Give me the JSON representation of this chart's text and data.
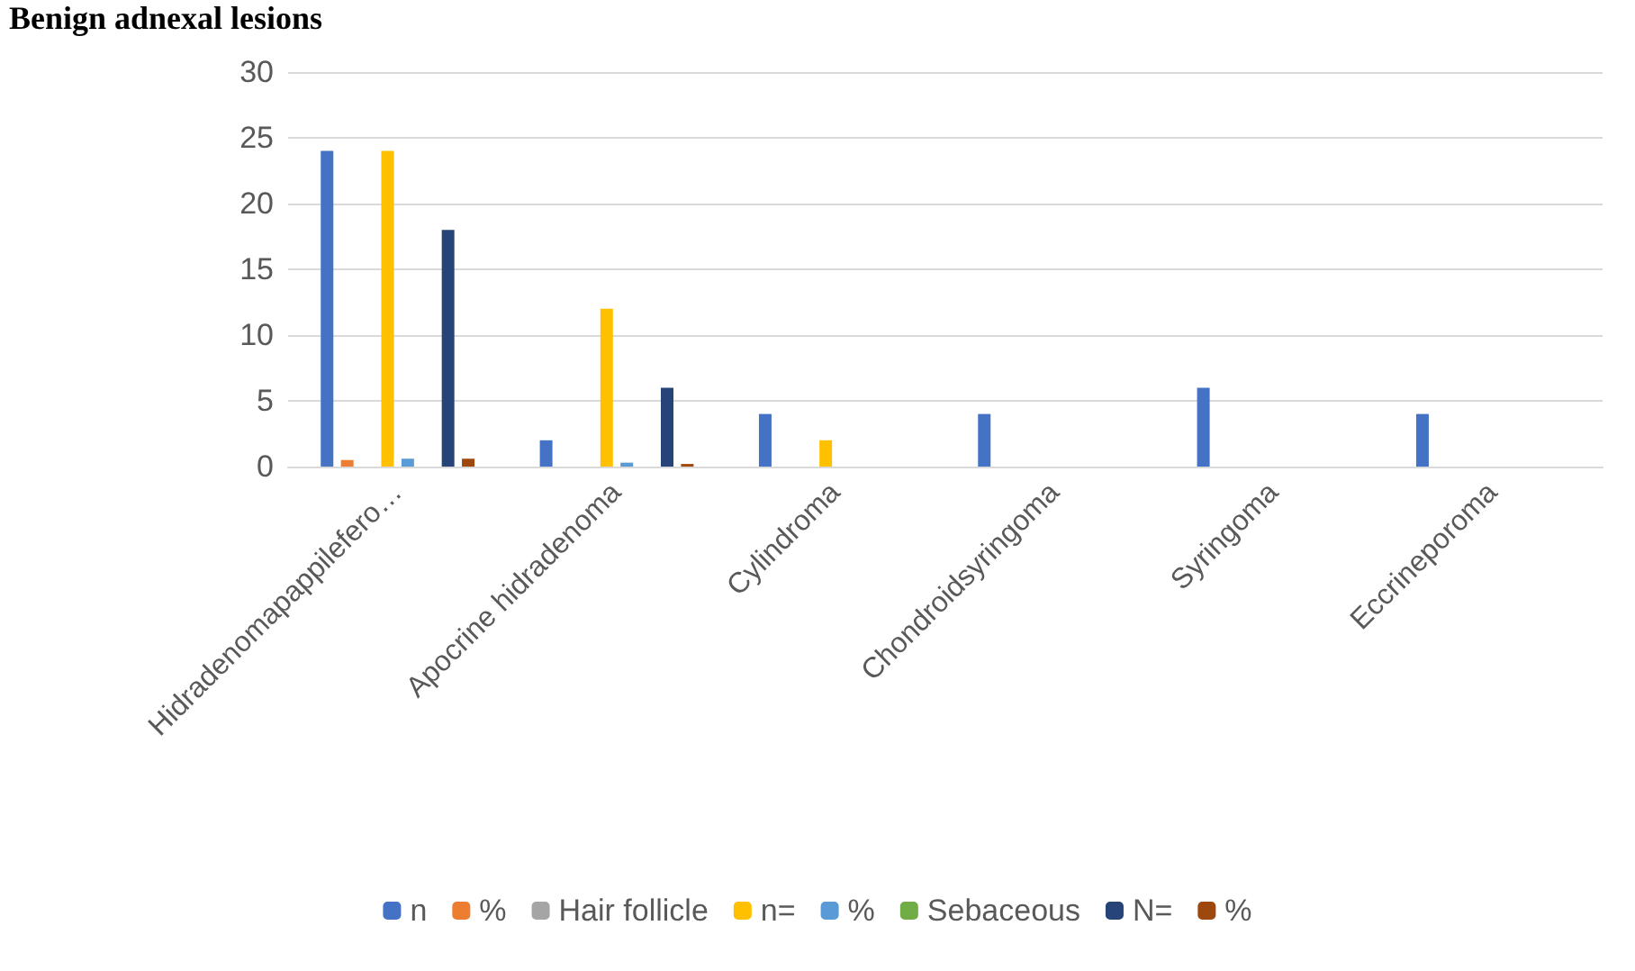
{
  "chart_data": {
    "type": "bar",
    "title": "Benign adnexal lesions",
    "categories": [
      "Hidradenomapappilefero…",
      "Apocrine hidradenoma",
      "Cylindroma",
      "Chondroidsyringoma",
      "Syringoma",
      "Eccrineporoma"
    ],
    "series": [
      {
        "name": "n",
        "color": "#4472c4",
        "values": [
          24,
          2,
          4,
          4,
          6,
          4
        ]
      },
      {
        "name": "%",
        "color": "#ed7d31",
        "values": [
          0.5,
          null,
          null,
          null,
          null,
          null
        ]
      },
      {
        "name": "Hair follicle",
        "color": "#a5a5a5",
        "values": [
          null,
          null,
          null,
          null,
          null,
          null
        ]
      },
      {
        "name": "n=",
        "color": "#ffc000",
        "values": [
          24,
          12,
          2,
          null,
          null,
          null
        ]
      },
      {
        "name": "%",
        "color": "#5b9bd5",
        "values": [
          0.6,
          0.3,
          null,
          null,
          null,
          null
        ]
      },
      {
        "name": "Sebaceous",
        "color": "#70ad47",
        "values": [
          null,
          null,
          null,
          null,
          null,
          null
        ]
      },
      {
        "name": "N=",
        "color": "#264478",
        "values": [
          18,
          6,
          null,
          null,
          null,
          null
        ]
      },
      {
        "name": "%",
        "color": "#9e480e",
        "values": [
          0.6,
          0.2,
          null,
          null,
          null,
          null
        ]
      }
    ],
    "ylim": [
      0,
      30
    ],
    "yticks": [
      0,
      5,
      10,
      15,
      20,
      25,
      30
    ],
    "grid": "y",
    "legend": "bottom"
  }
}
